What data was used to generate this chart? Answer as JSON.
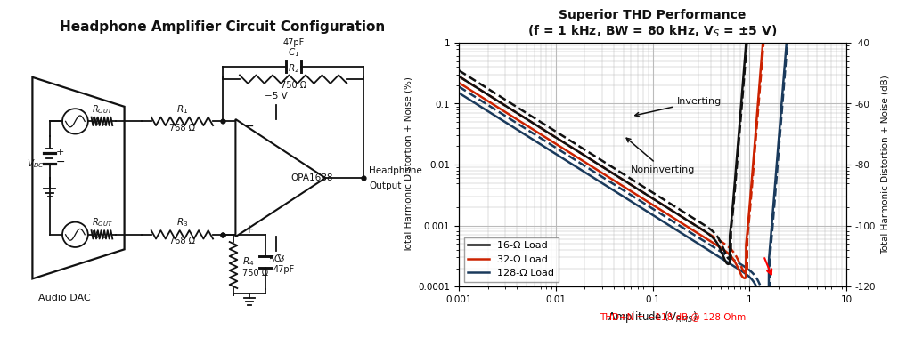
{
  "title_left": "Headphone Amplifier Circuit Configuration",
  "title_right": "Superior THD Performance",
  "subtitle_right": "(f = 1 kHz, BW = 80 kHz, V_S = ±5 V)",
  "xlabel": "Amplitude (V_RMS)",
  "ylabel_left": "Total Harmonic Distortion + Noise (%)",
  "ylabel_right": "Total Harmonic Distortion + Noise (dB)",
  "annotation_note": "THD+N = -118 dB @ 128 Ohm",
  "bg_color": "#ffffff",
  "grid_color": "#bbbbbb",
  "colors": {
    "black": "#111111",
    "red": "#cc2200",
    "blue": "#1a3a5c",
    "gray": "#888888"
  },
  "legend_labels": [
    "16-Ω Load",
    "32-Ω Load",
    "128-Ω Load"
  ]
}
